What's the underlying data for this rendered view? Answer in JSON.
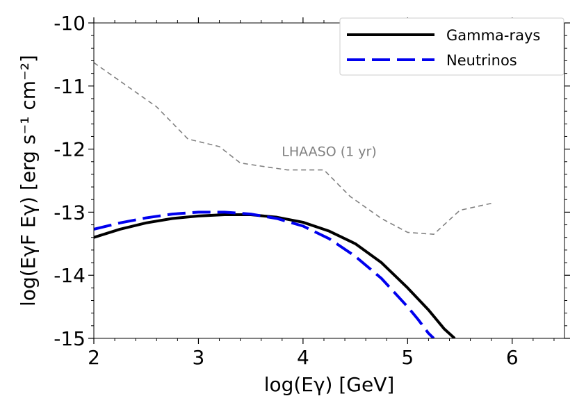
{
  "chart_data": {
    "type": "line",
    "title": "",
    "xlabel": "log(Eγ) [GeV]",
    "ylabel": "log(EγF Eγ) [erg s⁻¹ cm⁻²]",
    "xlim": [
      2,
      6.5
    ],
    "ylim": [
      -15,
      -10
    ],
    "x_ticks": [
      2,
      3,
      4,
      5,
      6
    ],
    "x_tick_labels": [
      "2",
      "3",
      "4",
      "5",
      "6"
    ],
    "y_ticks": [
      -15,
      -14,
      -13,
      -12,
      -11,
      -10
    ],
    "y_tick_labels": [
      "-15",
      "-14",
      "-13",
      "-12",
      "-11",
      "-10"
    ],
    "grid": false,
    "legend_position": "top-right",
    "series": [
      {
        "name": "Gamma-rays",
        "color": "#000000",
        "style": "solid",
        "x": [
          2.0,
          2.25,
          2.5,
          2.75,
          3.0,
          3.25,
          3.5,
          3.75,
          4.0,
          4.25,
          4.5,
          4.75,
          5.0,
          5.2,
          5.35,
          5.45
        ],
        "y": [
          -13.4,
          -13.27,
          -13.17,
          -13.1,
          -13.06,
          -13.04,
          -13.04,
          -13.08,
          -13.16,
          -13.3,
          -13.5,
          -13.8,
          -14.2,
          -14.55,
          -14.85,
          -15.0
        ]
      },
      {
        "name": "Neutrinos",
        "color": "#0000ee",
        "style": "dashed",
        "x": [
          2.0,
          2.25,
          2.5,
          2.75,
          3.0,
          3.25,
          3.5,
          3.75,
          4.0,
          4.25,
          4.5,
          4.75,
          5.0,
          5.1,
          5.2,
          5.25
        ],
        "y": [
          -13.27,
          -13.17,
          -13.09,
          -13.03,
          -13.0,
          -13.0,
          -13.03,
          -13.1,
          -13.22,
          -13.42,
          -13.7,
          -14.05,
          -14.5,
          -14.7,
          -14.92,
          -15.0
        ]
      },
      {
        "name": "LHAASO (1 yr)",
        "color": "#808080",
        "style": "dashed-thin",
        "x": [
          2.0,
          2.3,
          2.6,
          2.9,
          3.2,
          3.4,
          3.6,
          3.85,
          4.2,
          4.45,
          4.75,
          5.0,
          5.25,
          5.5,
          5.8
        ],
        "y": [
          -10.63,
          -10.98,
          -11.33,
          -11.84,
          -11.96,
          -12.22,
          -12.27,
          -12.33,
          -12.33,
          -12.75,
          -13.1,
          -13.32,
          -13.35,
          -12.97,
          -12.86
        ]
      }
    ],
    "annotations": [
      {
        "text": "LHAASO (1 yr)",
        "x": 4.25,
        "y": -12.03,
        "color": "#808080"
      }
    ]
  }
}
